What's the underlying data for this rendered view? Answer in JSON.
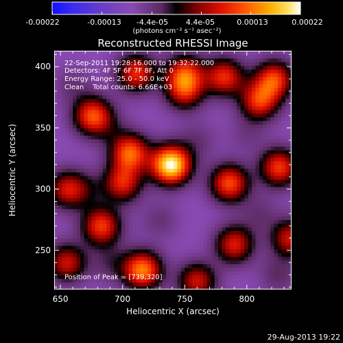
{
  "colorbar": {
    "tick_labels": [
      "-0.00022",
      "-0.00013",
      "-4.4e-05",
      "4.4e-05",
      "0.00013",
      "0.00022"
    ],
    "units_text": "(photons cm⁻² s⁻¹ asec⁻²)"
  },
  "footer": {
    "date": "29-Aug-2013 19:22"
  },
  "chart_data": {
    "type": "heatmap",
    "title": "Reconstructed RHESSI Image",
    "xlabel": "Heliocentric X (arcsec)",
    "ylabel": "Heliocentric Y (arcsec)",
    "xlim": [
      645,
      836
    ],
    "ylim": [
      218,
      413
    ],
    "x_ticks": [
      650,
      700,
      750,
      800
    ],
    "y_ticks": [
      250,
      300,
      350,
      400
    ],
    "clim": [
      -0.00022,
      0.00022
    ],
    "colormap": "rainbow-to-hot",
    "annotations": [
      "22-Sep-2011 19:28:16.000 to 19:32:22.000",
      "Detectors: 4F 5F 6F 7F 8F, Att 0",
      "Energy Range: 25.0 - 50.0 keV",
      "Clean    Total counts: 6.66E+03"
    ],
    "peak_label": "Position of Peak = [739,320]",
    "peak": {
      "x": 739,
      "y": 320,
      "value": 0.00022
    },
    "sources": [
      {
        "x": 739,
        "y": 320,
        "value": 0.00022
      },
      {
        "x": 716,
        "y": 234,
        "value": 0.00014
      },
      {
        "x": 706,
        "y": 330,
        "value": 0.00012
      },
      {
        "x": 676,
        "y": 360,
        "value": 0.00011
      },
      {
        "x": 826,
        "y": 318,
        "value": 0.0001
      },
      {
        "x": 786,
        "y": 305,
        "value": 0.00011
      },
      {
        "x": 683,
        "y": 270,
        "value": 0.0001
      },
      {
        "x": 711,
        "y": 395,
        "value": 9e-05
      },
      {
        "x": 782,
        "y": 392,
        "value": 9e-05
      },
      {
        "x": 822,
        "y": 390,
        "value": 0.0001
      },
      {
        "x": 750,
        "y": 395,
        "value": 8e-05
      },
      {
        "x": 700,
        "y": 305,
        "value": 8e-05
      },
      {
        "x": 750,
        "y": 380,
        "value": 6e-05
      },
      {
        "x": 810,
        "y": 372,
        "value": 9e-05
      },
      {
        "x": 790,
        "y": 255,
        "value": 8e-05
      },
      {
        "x": 760,
        "y": 225,
        "value": 7e-05
      },
      {
        "x": 655,
        "y": 240,
        "value": 7e-05
      },
      {
        "x": 655,
        "y": 300,
        "value": 6e-05
      },
      {
        "x": 835,
        "y": 260,
        "value": 7e-05
      },
      {
        "x": 660,
        "y": 385,
        "value": -4e-05
      },
      {
        "x": 690,
        "y": 350,
        "value": -5e-05
      },
      {
        "x": 730,
        "y": 275,
        "value": -4e-05
      },
      {
        "x": 760,
        "y": 340,
        "value": -4e-05
      },
      {
        "x": 800,
        "y": 345,
        "value": -5e-05
      },
      {
        "x": 690,
        "y": 240,
        "value": -3e-05
      },
      {
        "x": 810,
        "y": 280,
        "value": -4e-05
      },
      {
        "x": 825,
        "y": 230,
        "value": -3e-05
      },
      {
        "x": 670,
        "y": 300,
        "value": -3e-05
      }
    ]
  }
}
